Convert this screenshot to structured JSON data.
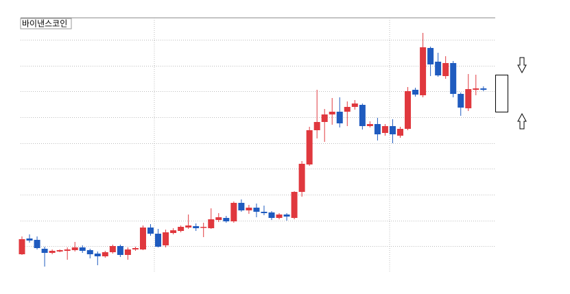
{
  "chart_data": {
    "type": "candlestick",
    "title": "바이낸스코인",
    "categories": [
      null,
      null,
      null,
      null,
      null,
      null,
      null,
      null,
      null,
      null,
      null,
      null,
      null,
      null,
      null,
      null,
      null,
      null,
      null,
      null,
      null,
      null,
      null,
      null,
      null,
      null,
      null,
      null,
      null,
      null,
      null,
      null,
      null,
      null,
      null,
      null,
      null,
      null,
      null,
      null,
      null,
      null,
      null,
      null,
      null,
      null,
      null,
      null,
      null,
      null,
      null,
      null,
      null,
      null,
      null,
      null,
      null,
      null,
      null,
      null,
      null,
      null
    ],
    "open": [
      26,
      49,
      47,
      34,
      28,
      30,
      31,
      32,
      36,
      32,
      27,
      23,
      29,
      38,
      25,
      33,
      33,
      65,
      56,
      39,
      57,
      60,
      65,
      67,
      65,
      64,
      76,
      79,
      74,
      101,
      90,
      94,
      88,
      87,
      79,
      84,
      79,
      117,
      157,
      207,
      219,
      230,
      234,
      234,
      241,
      244,
      213,
      216,
      203,
      213,
      199,
      209,
      266,
      258,
      327,
      307,
      286,
      305,
      260,
      239,
      266,
      268
    ],
    "high": [
      52,
      55,
      52,
      37,
      33,
      33,
      36,
      44,
      39,
      34,
      30,
      31,
      40,
      40,
      36,
      37,
      68,
      70,
      63,
      62,
      64,
      68,
      84,
      71,
      72,
      93,
      86,
      82,
      103,
      106,
      98,
      100,
      97,
      89,
      86,
      86,
      118,
      162,
      212,
      266,
      238,
      254,
      255,
      249,
      251,
      246,
      220,
      225,
      216,
      223,
      212,
      270,
      269,
      349,
      329,
      320,
      315,
      308,
      262,
      289,
      288,
      271
    ],
    "low": [
      25,
      43,
      33,
      8,
      26,
      29,
      18,
      30,
      28,
      20,
      10,
      21,
      27,
      22,
      18,
      31,
      32,
      53,
      36,
      36,
      55,
      58,
      63,
      60,
      51,
      63,
      73,
      72,
      72,
      88,
      85,
      80,
      83,
      76,
      77,
      75,
      77,
      110,
      155,
      195,
      190,
      215,
      211,
      213,
      237,
      208,
      211,
      192,
      199,
      188,
      196,
      207,
      256,
      255,
      286,
      285,
      282,
      255,
      228,
      235,
      258,
      264
    ],
    "close": [
      48,
      46,
      35,
      28,
      31,
      32,
      33,
      36,
      31,
      26,
      23,
      29,
      38,
      25,
      33,
      35,
      65,
      56,
      37,
      58,
      61,
      66,
      68,
      64,
      66,
      77,
      80,
      74,
      101,
      90,
      94,
      88,
      86,
      79,
      84,
      81,
      117,
      158,
      207,
      219,
      230,
      234,
      217,
      241,
      246,
      213,
      216,
      201,
      213,
      201,
      209,
      264,
      259,
      328,
      303,
      287,
      305,
      260,
      240,
      267,
      268,
      266
    ],
    "up_color": "#e0383e",
    "down_color": "#1f5bbf",
    "ylim": [
      0,
      371
    ],
    "yticks": [
      38,
      75,
      113,
      151,
      188,
      226,
      264,
      301,
      339
    ],
    "grid": true
  }
}
